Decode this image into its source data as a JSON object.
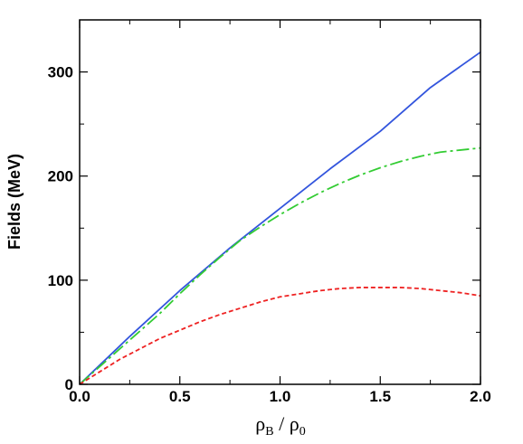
{
  "chart_data": {
    "type": "line",
    "title": "",
    "ylabel": "Fields (MeV)",
    "xlabel": {
      "rho": "ρ",
      "sub_num": "B",
      "sep": " / ",
      "sub_den": "0"
    },
    "xlim": [
      0,
      2
    ],
    "ylim": [
      0,
      350
    ],
    "x_ticks": [
      0,
      0.5,
      1,
      1.5,
      2
    ],
    "x_tick_labels": [
      "0.0",
      "0.5",
      "1.0",
      "1.5",
      "2.0"
    ],
    "x_minor_step": 0.25,
    "y_ticks": [
      0,
      100,
      200,
      300
    ],
    "y_tick_labels": [
      "0",
      "100",
      "200",
      "300"
    ],
    "y_minor_step": 50,
    "grid": false,
    "legend": "none",
    "series": [
      {
        "color": "#3355dd",
        "dash": "solid",
        "x": [
          0,
          0.25,
          0.5,
          0.75,
          1.0,
          1.25,
          1.5,
          1.75,
          2.0
        ],
        "y": [
          0,
          46,
          90,
          131,
          169,
          207,
          243,
          285,
          319
        ]
      },
      {
        "color": "#33cc33",
        "dash": "dashdot",
        "x": [
          0,
          0.1,
          0.2,
          0.3,
          0.4,
          0.5,
          0.6,
          0.7,
          0.8,
          0.9,
          1.0,
          1.1,
          1.2,
          1.3,
          1.4,
          1.5,
          1.6,
          1.7,
          1.8,
          1.9,
          2.0
        ],
        "y": [
          0,
          17,
          34,
          51,
          68,
          87,
          105,
          122,
          138,
          151,
          163,
          174,
          184,
          193,
          201,
          208,
          214,
          219,
          223,
          225,
          227
        ]
      },
      {
        "color": "#ee2222",
        "dash": "dashed",
        "x": [
          0,
          0.1,
          0.2,
          0.3,
          0.4,
          0.5,
          0.6,
          0.7,
          0.8,
          0.9,
          1.0,
          1.1,
          1.2,
          1.3,
          1.4,
          1.5,
          1.6,
          1.7,
          1.8,
          1.9,
          2.0
        ],
        "y": [
          0,
          12,
          24,
          34,
          44,
          52,
          60,
          67,
          73,
          79,
          84,
          87,
          90,
          92,
          93,
          93,
          93,
          92,
          90,
          88,
          85
        ]
      }
    ]
  }
}
